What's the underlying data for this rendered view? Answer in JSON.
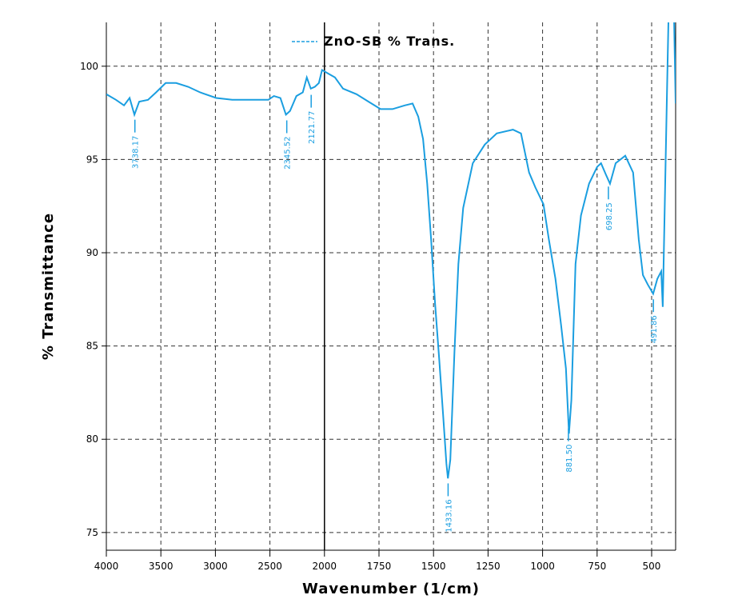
{
  "chart_data": {
    "type": "line",
    "xlabel": "Wavenumber (1/cm)",
    "ylabel": "% Transmittance",
    "xlim": [
      4000,
      390
    ],
    "xscale": {
      "break": 2000,
      "factor": 2
    },
    "xticks": [
      4000,
      3500,
      3000,
      2500,
      2000,
      1750,
      1500,
      1250,
      1000,
      750,
      500
    ],
    "ylim": [
      74.05,
      102.35
    ],
    "yticks": [
      75,
      80,
      85,
      90,
      95,
      100
    ],
    "grid": true,
    "legend": "top",
    "series": [
      {
        "name": "ZnO-SB % Trans.",
        "color": "#1a9ee0",
        "x": [
          4000,
          3912,
          3838,
          3787,
          3743,
          3699,
          3618,
          3544,
          3456,
          3360,
          3250,
          3140,
          2993,
          2846,
          2699,
          2515,
          2463,
          2404,
          2353,
          2316,
          2257,
          2199,
          2162,
          2125,
          2088,
          2051,
          2022,
          1982,
          1952,
          1915,
          1853,
          1798,
          1743,
          1688,
          1632,
          1596,
          1570,
          1548,
          1529,
          1511,
          1493,
          1474,
          1456,
          1441,
          1434,
          1423,
          1404,
          1386,
          1364,
          1320,
          1265,
          1210,
          1136,
          1099,
          1062,
          1033,
          996,
          971,
          941,
          915,
          893,
          879,
          868,
          849,
          824,
          787,
          750,
          732,
          710,
          691,
          665,
          621,
          585,
          559,
          540,
          518,
          493,
          474,
          456,
          449,
          430,
          423,
          408,
          397,
          390
        ],
        "values": [
          98.5,
          98.2,
          97.9,
          98.3,
          97.4,
          98.1,
          98.2,
          98.6,
          99.1,
          99.1,
          98.9,
          98.6,
          98.3,
          98.2,
          98.2,
          98.2,
          98.4,
          98.3,
          97.4,
          97.6,
          98.4,
          98.6,
          99.4,
          98.8,
          98.9,
          99.1,
          99.8,
          99.6,
          99.4,
          98.8,
          98.5,
          98.1,
          97.7,
          97.7,
          97.9,
          98.0,
          97.3,
          96.1,
          93.7,
          90.7,
          87.3,
          84.3,
          81.3,
          78.7,
          77.9,
          78.9,
          84.7,
          89.4,
          92.4,
          94.8,
          95.8,
          96.4,
          96.6,
          96.4,
          94.3,
          93.5,
          92.6,
          90.7,
          88.6,
          86.1,
          83.8,
          80.3,
          82.1,
          89.4,
          92.0,
          93.7,
          94.6,
          94.8,
          94.2,
          93.7,
          94.8,
          95.2,
          94.3,
          90.7,
          88.8,
          88.3,
          87.8,
          88.6,
          89.0,
          87.1,
          98.4,
          102.4,
          102.4,
          102.4,
          98.0
        ]
      }
    ],
    "annotations": [
      {
        "x": 3738.17,
        "label": "3738.17"
      },
      {
        "x": 2345.52,
        "label": "2345.52"
      },
      {
        "x": 2121.77,
        "label": "2121.77"
      },
      {
        "x": 1433.16,
        "label": "1433.16"
      },
      {
        "x": 881.5,
        "label": "881.50"
      },
      {
        "x": 698.25,
        "label": "698.25"
      },
      {
        "x": 491.86,
        "label": "491.86"
      }
    ]
  }
}
